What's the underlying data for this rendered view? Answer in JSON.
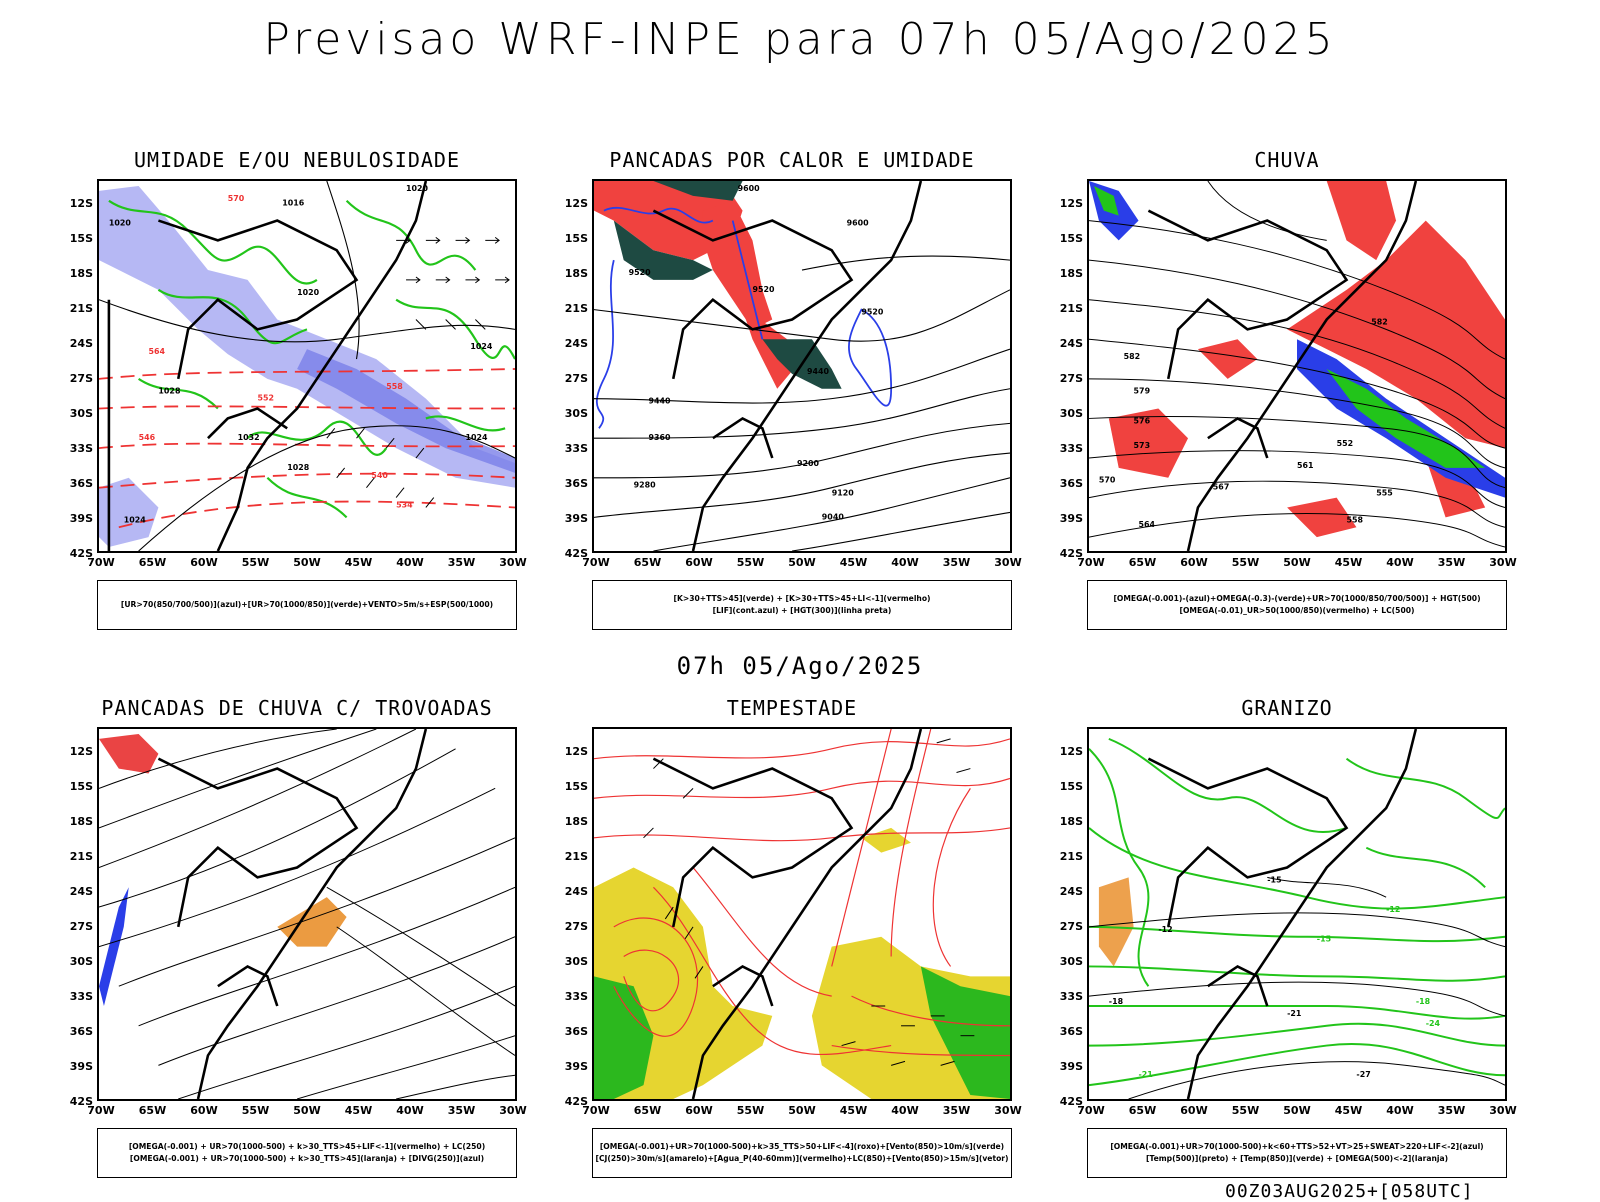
{
  "title": "Previsao WRF-INPE  para 07h 05/Ago/2025",
  "subtitle": "07h 05/Ago/2025",
  "footer": "00Z03AUG2025+[058UTC]",
  "lat_labels": [
    "12S",
    "15S",
    "18S",
    "21S",
    "24S",
    "27S",
    "30S",
    "33S",
    "36S",
    "39S",
    "42S"
  ],
  "lon_labels": [
    "70W",
    "65W",
    "60W",
    "55W",
    "50W",
    "45W",
    "40W",
    "35W",
    "30W"
  ],
  "panels": [
    {
      "title": "UMIDADE E/OU NEBULOSIDADE",
      "legend": [
        "[UR>70(850/700/500)](azul)+[UR>70(1000/850)](verde)+VENTO>5m/s+ESP(500/1000)"
      ],
      "contour_labels": [
        "1020",
        "1016",
        "1020",
        "1020",
        "1024",
        "1028",
        "1032",
        "1028",
        "1024",
        "570",
        "564",
        "558",
        "552",
        "546",
        "540",
        "534"
      ],
      "colors": {
        "blue": "#9b9ef0",
        "green": "#22c41a",
        "red": "#ee3333"
      }
    },
    {
      "title": "PANCADAS POR CALOR E UMIDADE",
      "legend": [
        "[K>30+TTS>45](verde) + [K>30+TTS>45+LI<-1](vermelho)",
        "[LIF](cont.azul) + [HGT(300)](linha preta)"
      ],
      "contour_labels": [
        "9600",
        "9600",
        "9520",
        "9520",
        "9440",
        "9360",
        "9280",
        "9200",
        "9120",
        "9040",
        "9520",
        "9440"
      ],
      "colors": {
        "red": "#f0423f",
        "darkgreen": "#1e4a42",
        "blue": "#2a3ee8"
      }
    },
    {
      "title": "CHUVA",
      "legend": [
        "[OMEGA(-0.001)-(azul)+OMEGA(-0.3)-(verde)+UR>70(1000/850/700/500)] + HGT(500)",
        "[OMEGA(-0.01)_UR>50(1000/850)(vermelho) + LC(500)"
      ],
      "contour_labels": [
        "582",
        "582",
        "579",
        "576",
        "573",
        "570",
        "567",
        "564",
        "561",
        "558",
        "555",
        "552"
      ],
      "colors": {
        "red": "#f0423f",
        "blue": "#2a3ee8",
        "green": "#22c41a"
      }
    },
    {
      "title": "PANCADAS DE CHUVA C/ TROVOADAS",
      "legend": [
        "[OMEGA(-0.001) + UR>70(1000-500) + k>30_TTS>45+LIF<-1](vermelho) + LC(250)",
        "[OMEGA(-0.001) + UR>70(1000-500) + k>30_TTS>45](laranja) + [DIVG(250)](azul)"
      ],
      "contour_labels": [],
      "colors": {
        "red": "#e83030",
        "orange": "#e88a20",
        "blue": "#2a3ee8"
      }
    },
    {
      "title": "TEMPESTADE",
      "legend": [
        "[OMEGA(-0.001)+UR>70(1000-500)+k>35_TTS>50+LIF<-4](roxo)+[Vento(850)>10m/s](verde)",
        "[CJ(250)>30m/s](amarelo)+[Agua_P(40-60mm)](vermelho)+LC(850)+[Vento(850)>15m/s](vetor)"
      ],
      "contour_labels": [],
      "colors": {
        "yellow": "#e6d530",
        "green": "#2cb81e",
        "red": "#ee3333"
      }
    },
    {
      "title": "GRANIZO",
      "legend": [
        "[OMEGA(-0.001)+UR>70(1000-500)+k<60+TTS>52+VT>25+SWEAT>220+LIF<-2](azul)",
        "[Temp(500)](preto) + [Temp(850)](verde) + [OMEGA(500)<-2](laranja)"
      ],
      "contour_labels": [
        "-12",
        "-15",
        "-18",
        "-21",
        "-27",
        "-12",
        "-15",
        "-18",
        "-21",
        "-24"
      ],
      "colors": {
        "green": "#22c41a",
        "orange": "#e88a20"
      }
    }
  ]
}
